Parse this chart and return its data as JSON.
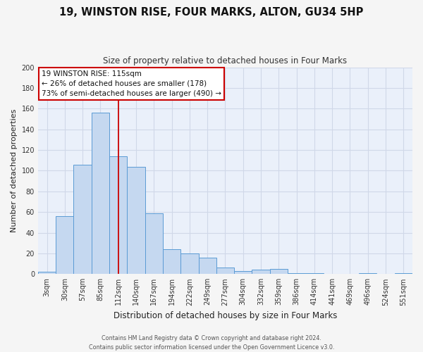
{
  "title": "19, WINSTON RISE, FOUR MARKS, ALTON, GU34 5HP",
  "subtitle": "Size of property relative to detached houses in Four Marks",
  "xlabel": "Distribution of detached houses by size in Four Marks",
  "ylabel": "Number of detached properties",
  "bar_labels": [
    "3sqm",
    "30sqm",
    "57sqm",
    "85sqm",
    "112sqm",
    "140sqm",
    "167sqm",
    "194sqm",
    "222sqm",
    "249sqm",
    "277sqm",
    "304sqm",
    "332sqm",
    "359sqm",
    "386sqm",
    "414sqm",
    "441sqm",
    "469sqm",
    "496sqm",
    "524sqm",
    "551sqm"
  ],
  "bar_values": [
    2,
    56,
    106,
    156,
    114,
    104,
    59,
    24,
    20,
    16,
    6,
    3,
    4,
    5,
    1,
    1,
    0,
    0,
    1,
    0,
    1
  ],
  "bar_color": "#c5d8f0",
  "bar_edge_color": "#5b9bd5",
  "vline_x": 4,
  "vline_color": "#cc0000",
  "annotation_line1": "19 WINSTON RISE: 115sqm",
  "annotation_line2": "← 26% of detached houses are smaller (178)",
  "annotation_line3": "73% of semi-detached houses are larger (490) →",
  "annotation_box_facecolor": "#ffffff",
  "annotation_box_edgecolor": "#cc0000",
  "ylim": [
    0,
    200
  ],
  "yticks": [
    0,
    20,
    40,
    60,
    80,
    100,
    120,
    140,
    160,
    180,
    200
  ],
  "grid_color": "#d0d8e8",
  "plot_bg_color": "#eaf0fa",
  "fig_bg_color": "#f5f5f5",
  "footer_line1": "Contains HM Land Registry data © Crown copyright and database right 2024.",
  "footer_line2": "Contains public sector information licensed under the Open Government Licence v3.0.",
  "title_fontsize": 10.5,
  "subtitle_fontsize": 8.5,
  "ylabel_fontsize": 8,
  "xlabel_fontsize": 8.5,
  "tick_fontsize": 7,
  "annotation_fontsize": 7.5,
  "footer_fontsize": 5.8
}
